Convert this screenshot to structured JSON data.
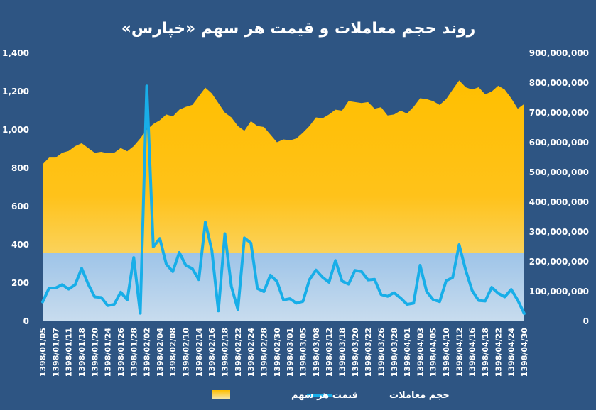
{
  "chart_data": {
    "type": "area",
    "title": "روند حجم معاملات و قیمت هر سهم «خپارس»",
    "colors": {
      "background": "#2e5583",
      "price_top": "#ffbf00",
      "price_bottom": "#f5e6a8",
      "volume_area_top": "#9ec4e8",
      "volume_area_bottom": "#c8dcee",
      "volume_line": "#18aee8"
    },
    "legend_position": "bottom",
    "grid": false,
    "y_left": {
      "min": 0,
      "max": 1400,
      "ticks": [
        "0",
        "200",
        "400",
        "600",
        "800",
        "1,000",
        "1,200",
        "1,400"
      ],
      "tick_values": [
        0,
        200,
        400,
        600,
        800,
        1000,
        1200,
        1400
      ]
    },
    "y_right": {
      "min": 0,
      "max": 900000000,
      "ticks": [
        "0",
        "100,000,000",
        "200,000,000",
        "300,000,000",
        "400,000,000",
        "500,000,000",
        "600,000,000",
        "700,000,000",
        "800,000,000",
        "900,000,000"
      ],
      "tick_values": [
        0,
        100000000,
        200000000,
        300000000,
        400000000,
        500000000,
        600000000,
        700000000,
        800000000,
        900000000
      ]
    },
    "x_tick_labels": [
      "1398/01/05",
      "1398/01/07",
      "1398/01/11",
      "1398/01/18",
      "1398/01/20",
      "1398/01/24",
      "1398/01/26",
      "1398/01/28",
      "1398/02/02",
      "1398/02/04",
      "1398/02/08",
      "1398/02/10",
      "1398/02/14",
      "1398/02/16",
      "1398/02/18",
      "1398/02/22",
      "1398/02/24",
      "1398/02/28",
      "1398/02/30",
      "1398/03/01",
      "1398/03/05",
      "1398/03/08",
      "1398/03/12",
      "1398/03/18",
      "1398/03/20",
      "1398/03/22",
      "1398/03/26",
      "1398/03/28",
      "1398/04/01",
      "1398/04/03",
      "1398/04/05",
      "1398/04/10",
      "1398/04/12",
      "1398/04/16",
      "1398/04/18",
      "1398/04/22",
      "1398/04/24",
      "1398/04/30"
    ],
    "series": [
      {
        "name": "قیمت هر سهم",
        "kind": "area",
        "axis": "left",
        "values": [
          820,
          855,
          855,
          880,
          890,
          915,
          930,
          905,
          880,
          885,
          878,
          880,
          905,
          888,
          915,
          955,
          1000,
          1030,
          1050,
          1080,
          1070,
          1105,
          1120,
          1130,
          1175,
          1220,
          1190,
          1140,
          1090,
          1065,
          1020,
          995,
          1045,
          1020,
          1015,
          975,
          935,
          950,
          945,
          955,
          985,
          1020,
          1065,
          1060,
          1080,
          1105,
          1100,
          1150,
          1145,
          1140,
          1145,
          1110,
          1118,
          1075,
          1080,
          1100,
          1085,
          1120,
          1165,
          1160,
          1150,
          1130,
          1160,
          1210,
          1258,
          1222,
          1210,
          1222,
          1185,
          1200,
          1230,
          1210,
          1165,
          1110,
          1135
        ]
      },
      {
        "name": "حجم معاملات",
        "kind": "line",
        "axis": "right",
        "values": [
          65000000,
          112000000,
          112000000,
          123000000,
          108000000,
          123000000,
          178000000,
          125000000,
          82000000,
          80000000,
          53000000,
          57000000,
          98000000,
          72000000,
          214000000,
          27000000,
          790000000,
          250000000,
          278000000,
          192000000,
          167000000,
          231000000,
          188000000,
          177000000,
          140000000,
          333000000,
          238000000,
          35000000,
          294000000,
          117000000,
          40000000,
          280000000,
          263000000,
          110000000,
          100000000,
          155000000,
          134000000,
          72000000,
          76000000,
          61000000,
          67000000,
          140000000,
          172000000,
          148000000,
          131000000,
          204000000,
          135000000,
          125000000,
          171000000,
          167000000,
          139000000,
          141000000,
          90000000,
          84000000,
          96000000,
          78000000,
          57000000,
          61000000,
          188000000,
          100000000,
          73000000,
          66000000,
          136000000,
          147000000,
          257000000,
          172000000,
          103000000,
          70000000,
          68000000,
          114000000,
          94000000,
          82000000,
          107000000,
          71000000,
          26000000
        ]
      }
    ]
  }
}
